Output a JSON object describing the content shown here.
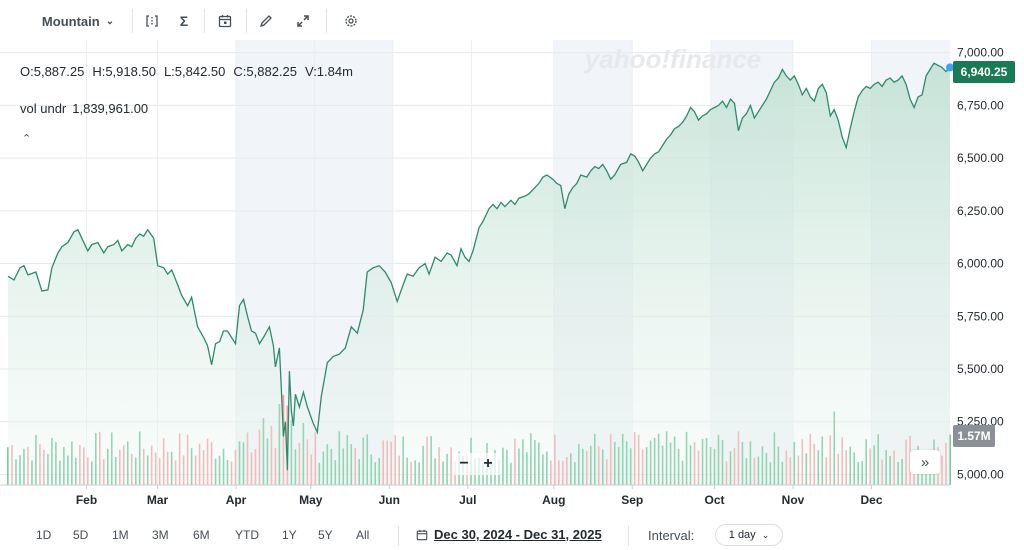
{
  "toolbar": {
    "chart_type": "Mountain",
    "icons": [
      "compare-icon",
      "indicators-icon",
      "events-icon",
      "draw-icon",
      "fullscreen-icon",
      "settings-icon"
    ]
  },
  "watermark": "yahoo!finance",
  "ohlc": {
    "open": "O:5,887.25",
    "high": "H:5,918.50",
    "low": "L:5,842.50",
    "close": "C:5,882.25",
    "volume": "V:1.84m"
  },
  "volume_study": {
    "label": "vol undr",
    "value": "1,839,961.00"
  },
  "last_price_badge": "6,940.25",
  "last_volume_badge": "1.57M",
  "colors": {
    "line": "#2e8b6a",
    "fill_top": "#cfe6dc",
    "up_volume": "#5cc08e",
    "down_volume": "#f29b9b",
    "badge": "#1a7a55"
  },
  "range_buttons": [
    "1D",
    "5D",
    "1M",
    "3M",
    "6M",
    "YTD",
    "1Y",
    "5Y",
    "All"
  ],
  "date_range": "Dec 30, 2024 - Dec 31, 2025",
  "interval": {
    "label": "Interval:",
    "value": "1 day"
  },
  "chart_data": {
    "type": "area",
    "series": [
      {
        "values": [
          [
            0,
            5940
          ],
          [
            3,
            5922
          ],
          [
            6,
            5980
          ],
          [
            8,
            5990
          ],
          [
            10,
            5946
          ],
          [
            14,
            5960
          ],
          [
            17,
            5870
          ],
          [
            20,
            5875
          ],
          [
            22,
            5980
          ],
          [
            25,
            6050
          ],
          [
            27,
            6080
          ],
          [
            30,
            6100
          ],
          [
            33,
            6150
          ],
          [
            35,
            6160
          ],
          [
            37,
            6120
          ],
          [
            40,
            6060
          ],
          [
            42,
            6090
          ],
          [
            45,
            6100
          ],
          [
            48,
            6050
          ],
          [
            50,
            6080
          ],
          [
            53,
            6090
          ],
          [
            55,
            6110
          ],
          [
            57,
            6060
          ],
          [
            60,
            6090
          ],
          [
            62,
            6080
          ],
          [
            64,
            6120
          ],
          [
            66,
            6140
          ],
          [
            68,
            6130
          ],
          [
            70,
            6160
          ],
          [
            73,
            6120
          ],
          [
            75,
            5990
          ],
          [
            78,
            5980
          ],
          [
            80,
            5950
          ],
          [
            82,
            5970
          ],
          [
            85,
            5900
          ],
          [
            87,
            5850
          ],
          [
            90,
            5800
          ],
          [
            92,
            5840
          ],
          [
            95,
            5700
          ],
          [
            98,
            5650
          ],
          [
            100,
            5610
          ],
          [
            102,
            5520
          ],
          [
            104,
            5620
          ],
          [
            106,
            5630
          ],
          [
            108,
            5680
          ],
          [
            110,
            5680
          ],
          [
            112,
            5650
          ],
          [
            114,
            5620
          ],
          [
            116,
            5800
          ],
          [
            118,
            5830
          ],
          [
            120,
            5750
          ],
          [
            122,
            5680
          ],
          [
            124,
            5670
          ],
          [
            126,
            5620
          ],
          [
            128,
            5650
          ],
          [
            131,
            5700
          ],
          [
            133,
            5610
          ],
          [
            134,
            5510
          ],
          [
            136,
            5600
          ],
          [
            137,
            5400
          ],
          [
            138,
            5180
          ],
          [
            139,
            5250
          ],
          [
            140,
            5020
          ],
          [
            141,
            5490
          ],
          [
            142,
            5300
          ],
          [
            143,
            5230
          ],
          [
            144,
            5380
          ],
          [
            146,
            5320
          ],
          [
            148,
            5390
          ],
          [
            150,
            5320
          ],
          [
            153,
            5240
          ],
          [
            155,
            5200
          ],
          [
            157,
            5370
          ],
          [
            160,
            5530
          ],
          [
            163,
            5560
          ],
          [
            166,
            5570
          ],
          [
            169,
            5600
          ],
          [
            172,
            5700
          ],
          [
            175,
            5670
          ],
          [
            178,
            5780
          ],
          [
            180,
            5960
          ],
          [
            183,
            5980
          ],
          [
            186,
            5990
          ],
          [
            189,
            5960
          ],
          [
            192,
            5910
          ],
          [
            195,
            5820
          ],
          [
            198,
            5900
          ],
          [
            200,
            5950
          ],
          [
            203,
            5940
          ],
          [
            206,
            5980
          ],
          [
            209,
            6000
          ],
          [
            211,
            5950
          ],
          [
            214,
            6030
          ],
          [
            217,
            6010
          ],
          [
            220,
            6050
          ],
          [
            222,
            6040
          ],
          [
            225,
            5990
          ],
          [
            227,
            6070
          ],
          [
            229,
            6030
          ],
          [
            231,
            6010
          ],
          [
            233,
            6060
          ],
          [
            236,
            6170
          ],
          [
            238,
            6200
          ],
          [
            241,
            6260
          ],
          [
            243,
            6280
          ],
          [
            245,
            6260
          ],
          [
            247,
            6290
          ],
          [
            249,
            6270
          ],
          [
            252,
            6300
          ],
          [
            254,
            6280
          ],
          [
            256,
            6310
          ],
          [
            259,
            6320
          ],
          [
            261,
            6330
          ],
          [
            264,
            6360
          ],
          [
            266,
            6380
          ],
          [
            268,
            6410
          ],
          [
            270,
            6420
          ],
          [
            273,
            6400
          ],
          [
            275,
            6380
          ],
          [
            277,
            6370
          ],
          [
            279,
            6260
          ],
          [
            281,
            6330
          ],
          [
            283,
            6360
          ],
          [
            285,
            6380
          ],
          [
            287,
            6420
          ],
          [
            290,
            6410
          ],
          [
            292,
            6440
          ],
          [
            294,
            6460
          ],
          [
            296,
            6450
          ],
          [
            298,
            6470
          ],
          [
            300,
            6440
          ],
          [
            302,
            6400
          ],
          [
            304,
            6420
          ],
          [
            307,
            6470
          ],
          [
            310,
            6480
          ],
          [
            312,
            6520
          ],
          [
            314,
            6510
          ],
          [
            316,
            6480
          ],
          [
            318,
            6440
          ],
          [
            320,
            6470
          ],
          [
            322,
            6500
          ],
          [
            324,
            6520
          ],
          [
            326,
            6530
          ],
          [
            328,
            6560
          ],
          [
            330,
            6590
          ],
          [
            332,
            6610
          ],
          [
            334,
            6640
          ],
          [
            336,
            6650
          ],
          [
            338,
            6670
          ],
          [
            340,
            6700
          ],
          [
            342,
            6740
          ],
          [
            344,
            6720
          ],
          [
            346,
            6680
          ],
          [
            348,
            6700
          ],
          [
            350,
            6710
          ],
          [
            352,
            6730
          ],
          [
            354,
            6740
          ],
          [
            356,
            6750
          ],
          [
            358,
            6770
          ],
          [
            360,
            6740
          ],
          [
            362,
            6780
          ],
          [
            364,
            6760
          ],
          [
            366,
            6630
          ],
          [
            368,
            6690
          ],
          [
            370,
            6710
          ],
          [
            372,
            6750
          ],
          [
            374,
            6690
          ],
          [
            376,
            6720
          ],
          [
            378,
            6750
          ],
          [
            380,
            6780
          ],
          [
            382,
            6820
          ],
          [
            384,
            6860
          ],
          [
            386,
            6880
          ],
          [
            388,
            6920
          ],
          [
            390,
            6890
          ],
          [
            392,
            6870
          ],
          [
            394,
            6890
          ],
          [
            396,
            6850
          ],
          [
            398,
            6800
          ],
          [
            400,
            6830
          ],
          [
            402,
            6790
          ],
          [
            404,
            6770
          ],
          [
            406,
            6830
          ],
          [
            408,
            6850
          ],
          [
            410,
            6810
          ],
          [
            412,
            6700
          ],
          [
            414,
            6730
          ],
          [
            416,
            6680
          ],
          [
            418,
            6600
          ],
          [
            420,
            6550
          ],
          [
            422,
            6640
          ],
          [
            424,
            6720
          ],
          [
            426,
            6790
          ],
          [
            428,
            6820
          ],
          [
            430,
            6840
          ],
          [
            432,
            6830
          ],
          [
            434,
            6850
          ],
          [
            436,
            6860
          ],
          [
            438,
            6840
          ],
          [
            440,
            6870
          ],
          [
            442,
            6880
          ],
          [
            444,
            6860
          ],
          [
            446,
            6870
          ],
          [
            448,
            6890
          ],
          [
            450,
            6850
          ],
          [
            452,
            6780
          ],
          [
            454,
            6740
          ],
          [
            456,
            6790
          ],
          [
            458,
            6800
          ],
          [
            460,
            6890
          ],
          [
            462,
            6920
          ],
          [
            464,
            6950
          ],
          [
            466,
            6940
          ],
          [
            468,
            6930
          ],
          [
            470,
            6910
          ],
          [
            472,
            6930
          ]
        ]
      }
    ],
    "y_ticks": [
      "7,000.00",
      "6,750.00",
      "6,500.00",
      "6,250.00",
      "6,000.00",
      "5,750.00",
      "5,500.00",
      "5,250.00",
      "5,000.00"
    ],
    "ylim": [
      4950,
      7060
    ],
    "x_ticks": [
      "Feb",
      "Mar",
      "Apr",
      "May",
      "Jun",
      "Jul",
      "Aug",
      "Sep",
      "Oct",
      "Nov",
      "Dec"
    ],
    "grid": true,
    "volume_series": "bars (green = up, red = down), last 1.57M"
  }
}
